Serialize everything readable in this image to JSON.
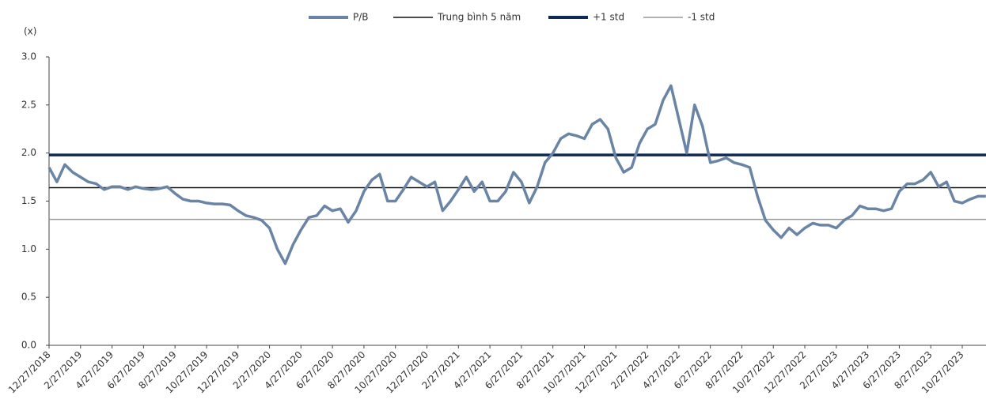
{
  "chart_data": {
    "type": "line",
    "y_label": "(x)",
    "categories": [
      "12/27/2018",
      null,
      null,
      null,
      "2/27/2019",
      null,
      null,
      null,
      "4/27/2019",
      null,
      null,
      null,
      "6/27/2019",
      null,
      null,
      null,
      "8/27/2019",
      null,
      null,
      null,
      "10/27/2019",
      null,
      null,
      null,
      "12/27/2019",
      null,
      null,
      null,
      "2/27/2020",
      null,
      null,
      null,
      "4/27/2020",
      null,
      null,
      null,
      "6/27/2020",
      null,
      null,
      null,
      "8/27/2020",
      null,
      null,
      null,
      "10/27/2020",
      null,
      null,
      null,
      "12/27/2020",
      null,
      null,
      null,
      "2/27/2021",
      null,
      null,
      null,
      "4/27/2021",
      null,
      null,
      null,
      "6/27/2021",
      null,
      null,
      null,
      "8/27/2021",
      null,
      null,
      null,
      "10/27/2021",
      null,
      null,
      null,
      "12/27/2021",
      null,
      null,
      null,
      "2/27/2022",
      null,
      null,
      null,
      "4/27/2022",
      null,
      null,
      null,
      "6/27/2022",
      null,
      null,
      null,
      "8/27/2022",
      null,
      null,
      null,
      "10/27/2022",
      null,
      null,
      null,
      "12/27/2022",
      null,
      null,
      null,
      "2/27/2023",
      null,
      null,
      null,
      "4/27/2023",
      null,
      null,
      null,
      "6/27/2023",
      null,
      null,
      null,
      "8/27/2023",
      null,
      null,
      null,
      "10/27/2023",
      null,
      null,
      null
    ],
    "series": [
      {
        "name": "P/B",
        "color": "#6a84a6",
        "values": [
          1.85,
          1.7,
          1.88,
          1.8,
          1.75,
          1.7,
          1.68,
          1.62,
          1.65,
          1.65,
          1.62,
          1.65,
          1.63,
          1.62,
          1.63,
          1.65,
          1.58,
          1.52,
          1.5,
          1.5,
          1.48,
          1.47,
          1.47,
          1.46,
          1.4,
          1.35,
          1.33,
          1.3,
          1.22,
          1.0,
          0.85,
          1.05,
          1.2,
          1.33,
          1.35,
          1.45,
          1.4,
          1.42,
          1.28,
          1.4,
          1.6,
          1.72,
          1.78,
          1.5,
          1.5,
          1.62,
          1.75,
          1.7,
          1.65,
          1.7,
          1.4,
          1.5,
          1.62,
          1.75,
          1.6,
          1.7,
          1.5,
          1.5,
          1.6,
          1.8,
          1.7,
          1.48,
          1.65,
          1.9,
          2.0,
          2.15,
          2.2,
          2.18,
          2.15,
          2.3,
          2.35,
          2.25,
          1.95,
          1.8,
          1.85,
          2.1,
          2.25,
          2.3,
          2.55,
          2.7,
          2.35,
          2.0,
          2.5,
          2.28,
          1.9,
          1.92,
          1.95,
          1.9,
          1.88,
          1.85,
          1.55,
          1.3,
          1.2,
          1.12,
          1.22,
          1.15,
          1.22,
          1.27,
          1.25,
          1.25,
          1.22,
          1.3,
          1.35,
          1.45,
          1.42,
          1.42,
          1.4,
          1.42,
          1.6,
          1.68,
          1.68,
          1.72,
          1.8,
          1.65,
          1.7,
          1.5,
          1.48,
          1.52,
          1.55,
          1.55
        ]
      }
    ],
    "reference_lines": [
      {
        "name": "Trung bình 5 năm",
        "color": "#111111",
        "value": 1.64
      },
      {
        "name": "+1 std",
        "color": "#0f2a57",
        "value": 1.98
      },
      {
        "name": "-1 std",
        "color": "#999999",
        "value": 1.31
      }
    ],
    "ylim": [
      0,
      3
    ],
    "yticks": [
      {
        "value": 0,
        "label": "0.0"
      },
      {
        "value": 0.5,
        "label": "0.5"
      },
      {
        "value": 1,
        "label": "1.0"
      },
      {
        "value": 1.5,
        "label": "1.5"
      },
      {
        "value": 2,
        "label": "2.0"
      },
      {
        "value": 2.5,
        "label": "2.5"
      },
      {
        "value": 3,
        "label": "3.0"
      }
    ],
    "legend": "top"
  }
}
